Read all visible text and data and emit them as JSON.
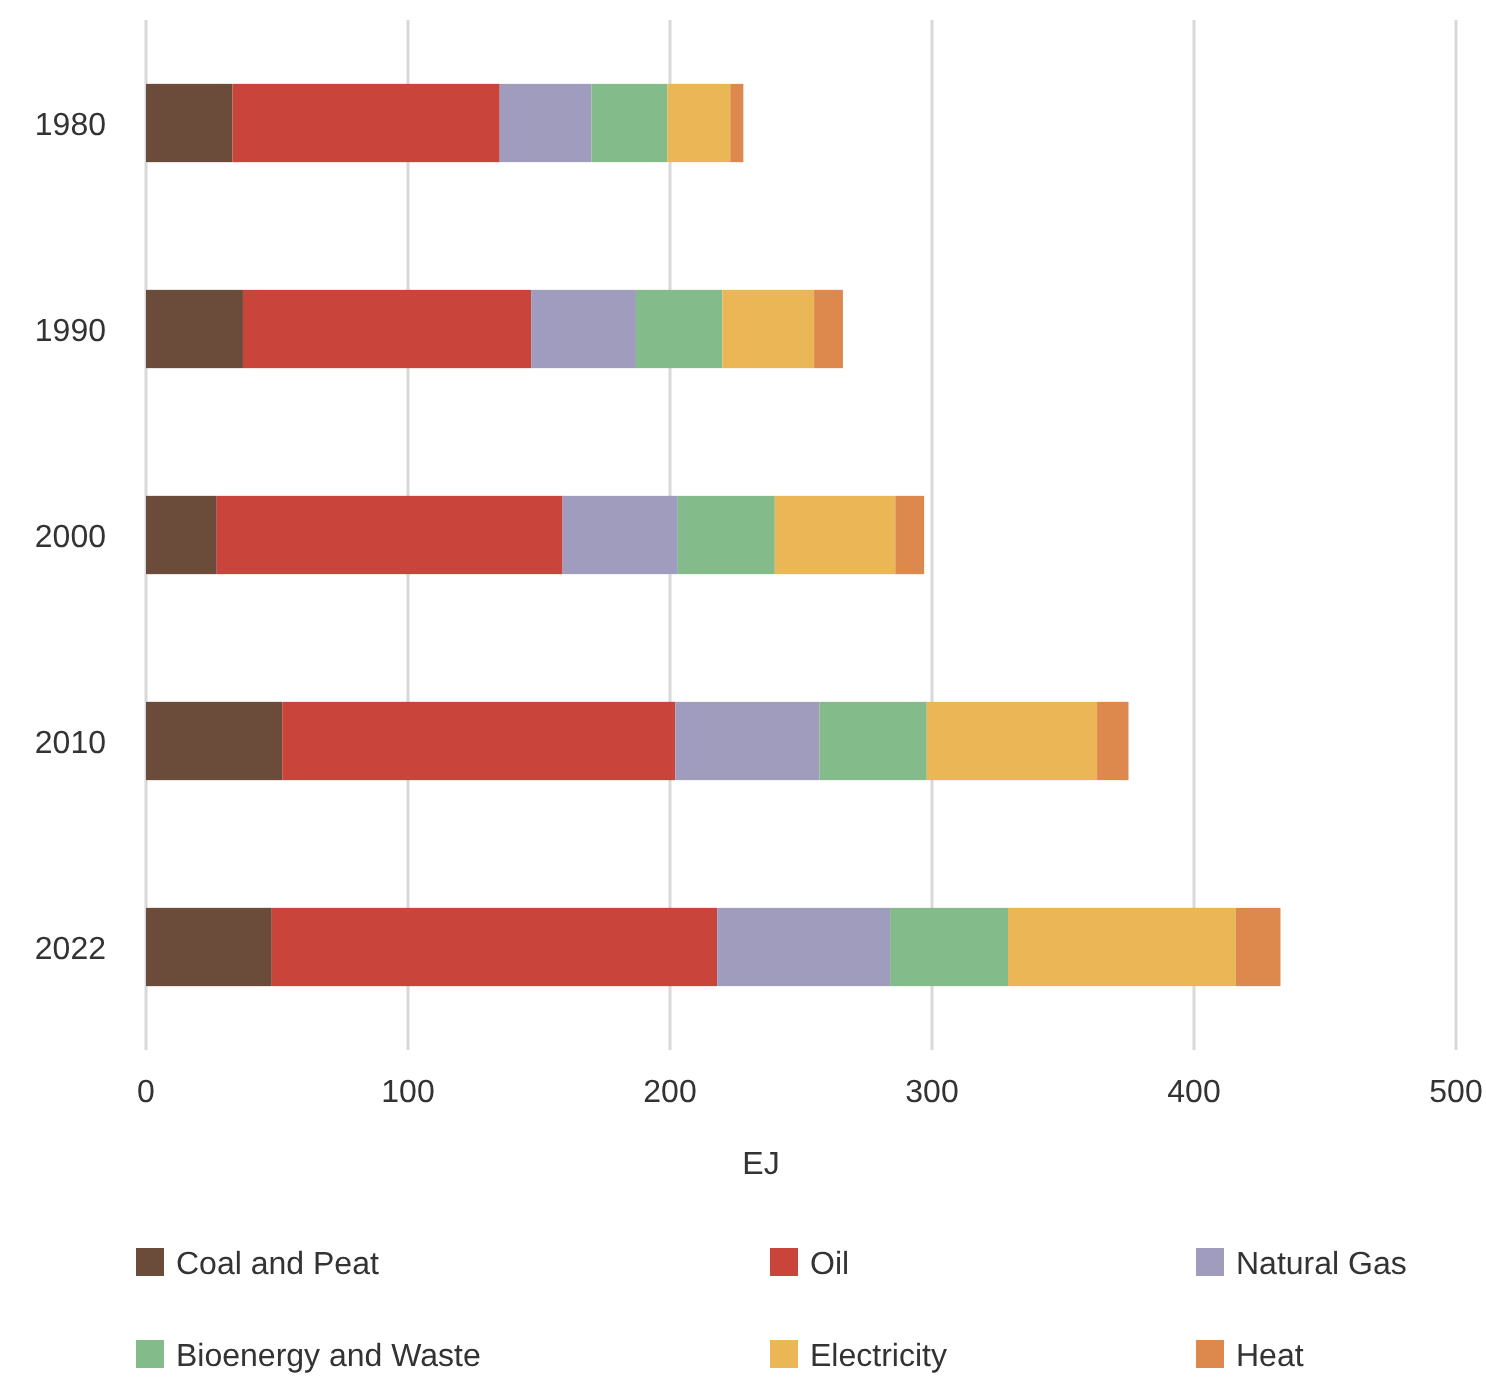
{
  "chart_data": {
    "type": "bar",
    "orientation": "horizontal",
    "stacked": true,
    "xlabel": "EJ",
    "categories": [
      "1980",
      "1990",
      "2000",
      "2010",
      "2022"
    ],
    "series": [
      {
        "name": "Coal and Peat",
        "color": "#6b4c3b",
        "values": [
          33,
          37,
          27,
          52,
          48
        ]
      },
      {
        "name": "Oil",
        "color": "#c9443a",
        "values": [
          102,
          110,
          132,
          150,
          170
        ]
      },
      {
        "name": "Natural Gas",
        "color": "#a09cbe",
        "values": [
          35,
          40,
          44,
          55,
          66
        ]
      },
      {
        "name": "Bioenergy and Waste",
        "color": "#84bb8a",
        "values": [
          29,
          33,
          37,
          41,
          45
        ]
      },
      {
        "name": "Electricity",
        "color": "#ebb655",
        "values": [
          24,
          35,
          46,
          65,
          87
        ]
      },
      {
        "name": "Heat",
        "color": "#dd884d",
        "values": [
          5,
          11,
          11,
          12,
          17
        ]
      }
    ],
    "xlim": [
      0,
      500
    ],
    "xticks": [
      0,
      100,
      200,
      300,
      400,
      500
    ],
    "grid": "x",
    "legend": "bottom"
  }
}
